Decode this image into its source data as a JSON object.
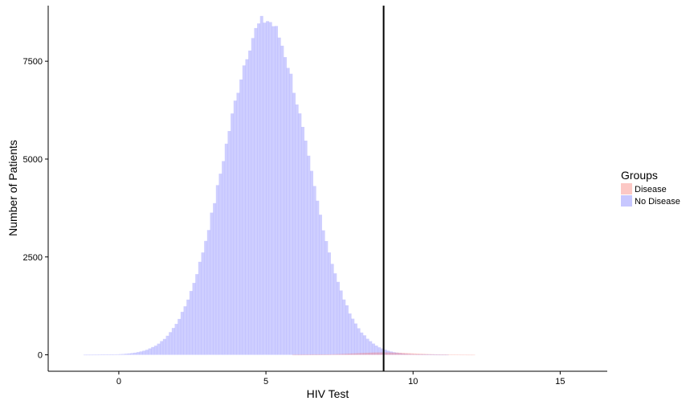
{
  "chart_data": {
    "type": "histogram",
    "xlabel": "HIV Test",
    "ylabel": "Number of Patients",
    "xlim": [
      -2.4,
      16.6
    ],
    "ylim": [
      -420,
      8920
    ],
    "x_ticks": [
      0,
      5,
      10,
      15
    ],
    "y_ticks": [
      0,
      2500,
      5000,
      7500
    ],
    "bin_width": 0.1,
    "grid": false,
    "legend": {
      "title": "Groups",
      "position": "right",
      "entries": [
        {
          "label": "Disease",
          "color": "#f8766d"
        },
        {
          "label": "No Disease",
          "color": "#6666ff"
        }
      ]
    },
    "series": [
      {
        "name": "No Disease",
        "color": "#6666ff",
        "opacity": 0.32,
        "mean": 5.0,
        "sd": 1.4,
        "peak": 8550,
        "x_range": [
          -1.2,
          13.0
        ]
      },
      {
        "name": "Disease",
        "color": "#f8766d",
        "opacity": 0.35,
        "mean": 9.0,
        "sd": 1.0,
        "peak": 60,
        "x_range": [
          5.5,
          13.5
        ]
      }
    ],
    "threshold_x": 9.0
  }
}
